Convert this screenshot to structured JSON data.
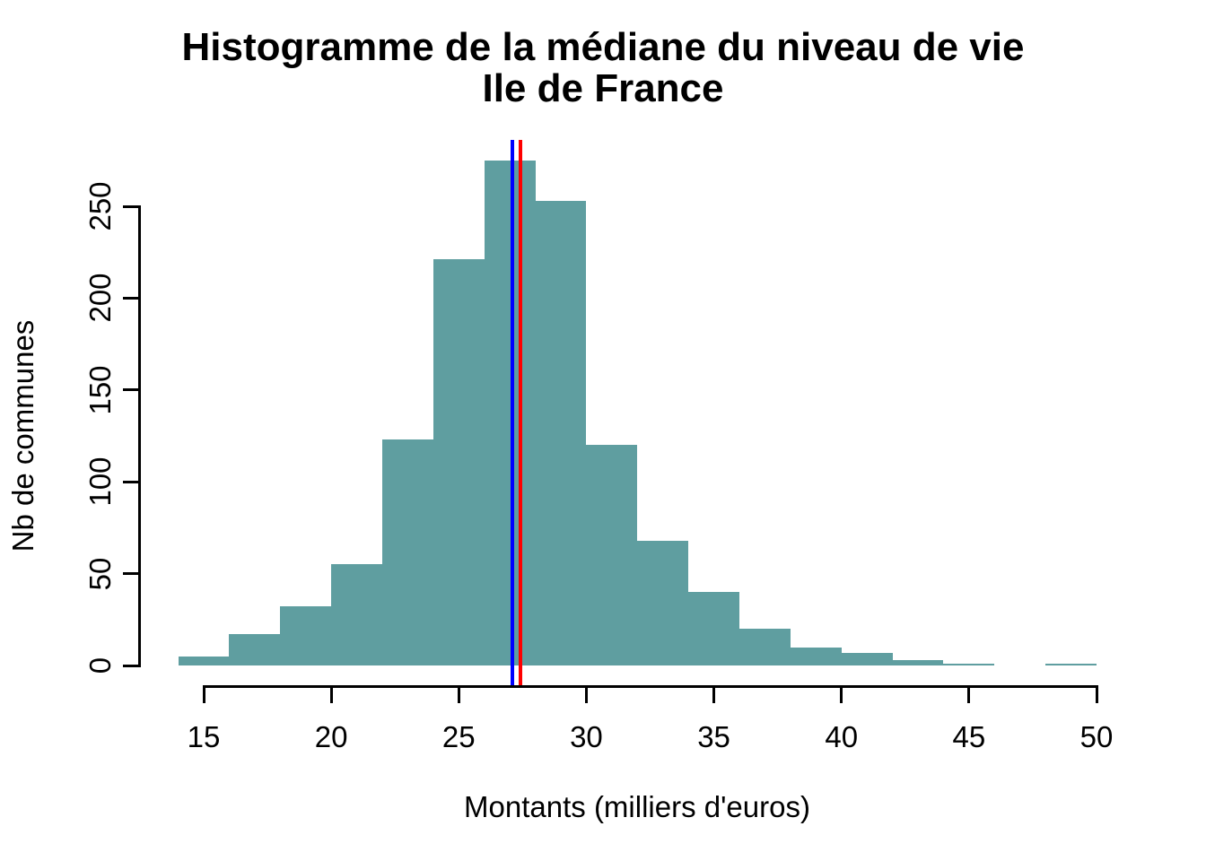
{
  "chart_data": {
    "type": "bar",
    "subtype": "histogram",
    "title_line1": "Histogramme de la médiane du niveau de vie",
    "title_line2": "Ile de France",
    "xlabel": "Montants (milliers d'euros)",
    "ylabel": "Nb de communes",
    "bin_start": 14,
    "bin_width": 2,
    "bin_edges": [
      14,
      16,
      18,
      20,
      22,
      24,
      26,
      28,
      30,
      32,
      34,
      36,
      38,
      40,
      42,
      44,
      46,
      48,
      50
    ],
    "counts": [
      5,
      17,
      32,
      55,
      123,
      221,
      275,
      253,
      120,
      68,
      40,
      20,
      10,
      7,
      3,
      1,
      0,
      1
    ],
    "x_ticks": [
      15,
      20,
      25,
      30,
      35,
      40,
      45,
      50
    ],
    "y_ticks": [
      0,
      50,
      100,
      150,
      200,
      250
    ],
    "xlim": [
      14,
      50
    ],
    "ylim": [
      0,
      275
    ],
    "grid": false,
    "legend": "none",
    "bar_color": "#5F9EA0",
    "background_color": "#FFFFFF",
    "axis_color": "#000000",
    "vlines": [
      {
        "name": "blue-marker-line",
        "value": 27.1,
        "color": "#0000FF"
      },
      {
        "name": "red-marker-line",
        "value": 27.4,
        "color": "#FF0000"
      }
    ]
  }
}
